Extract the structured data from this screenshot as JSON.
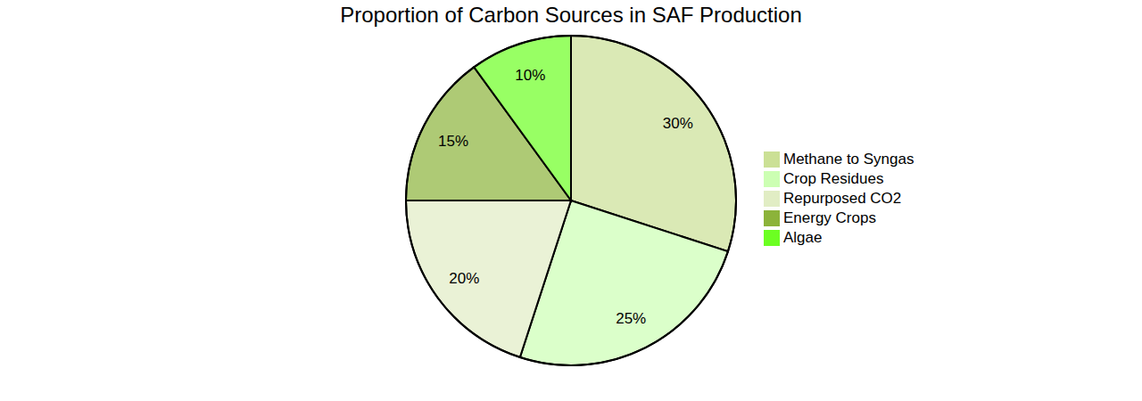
{
  "chart_data": {
    "type": "pie",
    "title": "Proportion of Carbon Sources in SAF Production",
    "categories": [
      "Methane to Syngas",
      "Crop Residues",
      "Repurposed CO2",
      "Energy Crops",
      "Algae"
    ],
    "values": [
      30,
      25,
      20,
      15,
      10
    ],
    "value_labels": [
      "30%",
      "25%",
      "20%",
      "15%",
      "10%"
    ],
    "colors": [
      "#cbe095",
      "#ccffb3",
      "#e1edc4",
      "#8cb33a",
      "#6cff22"
    ],
    "legend": "right",
    "data_labels": true
  }
}
